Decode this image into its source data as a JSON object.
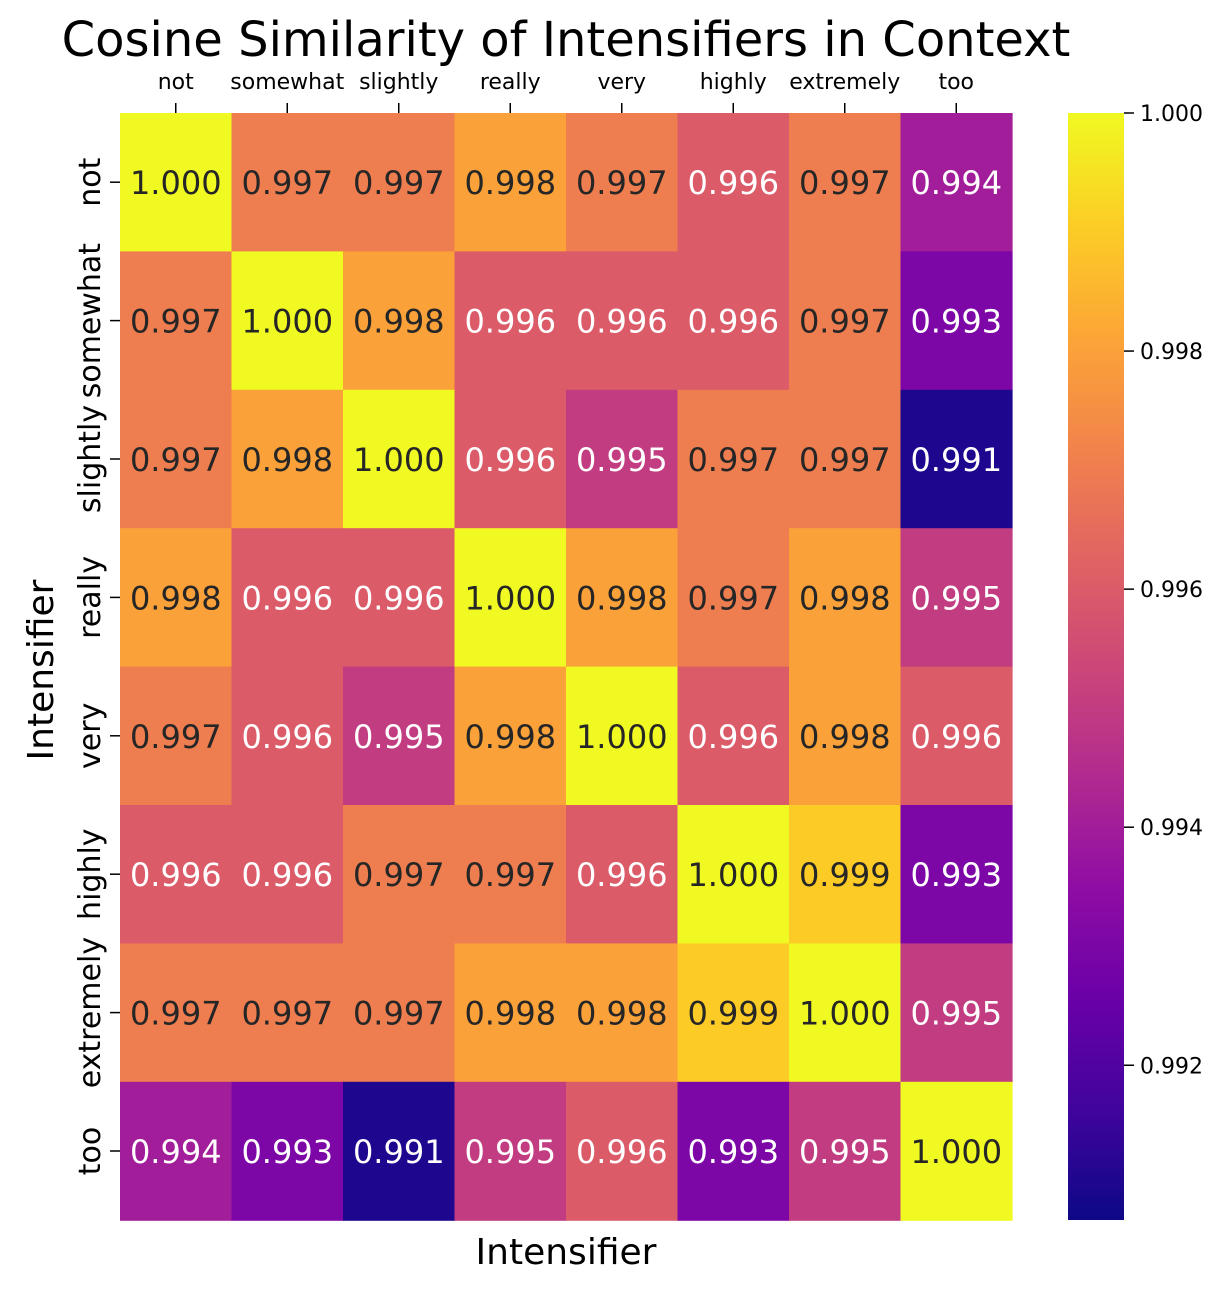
{
  "chart_data": {
    "type": "heatmap",
    "title": "Cosine Similarity of Intensifiers in Context",
    "xlabel": "Intensifier",
    "ylabel": "Intensifier",
    "x_categories": [
      "not",
      "somewhat",
      "slightly",
      "really",
      "very",
      "highly",
      "extremely",
      "too"
    ],
    "y_categories": [
      "not",
      "somewhat",
      "slightly",
      "really",
      "very",
      "highly",
      "extremely",
      "too"
    ],
    "values": [
      [
        1.0,
        0.997,
        0.997,
        0.998,
        0.997,
        0.996,
        0.997,
        0.994
      ],
      [
        0.997,
        1.0,
        0.998,
        0.996,
        0.996,
        0.996,
        0.997,
        0.993
      ],
      [
        0.997,
        0.998,
        1.0,
        0.996,
        0.995,
        0.997,
        0.997,
        0.991
      ],
      [
        0.998,
        0.996,
        0.996,
        1.0,
        0.998,
        0.997,
        0.998,
        0.995
      ],
      [
        0.997,
        0.996,
        0.995,
        0.998,
        1.0,
        0.996,
        0.998,
        0.996
      ],
      [
        0.996,
        0.996,
        0.997,
        0.997,
        0.996,
        1.0,
        0.999,
        0.993
      ],
      [
        0.997,
        0.997,
        0.997,
        0.998,
        0.998,
        0.999,
        1.0,
        0.995
      ],
      [
        0.994,
        0.993,
        0.991,
        0.995,
        0.996,
        0.993,
        0.995,
        1.0
      ]
    ],
    "colormap": "plasma",
    "color_range": [
      0.9907,
      1.0
    ],
    "colorbar_ticks": [
      "1.000",
      "0.998",
      "0.996",
      "0.994",
      "0.992"
    ],
    "annotation_format": "3 decimals",
    "x_tick_position": "top",
    "colorbar_position": "right"
  }
}
